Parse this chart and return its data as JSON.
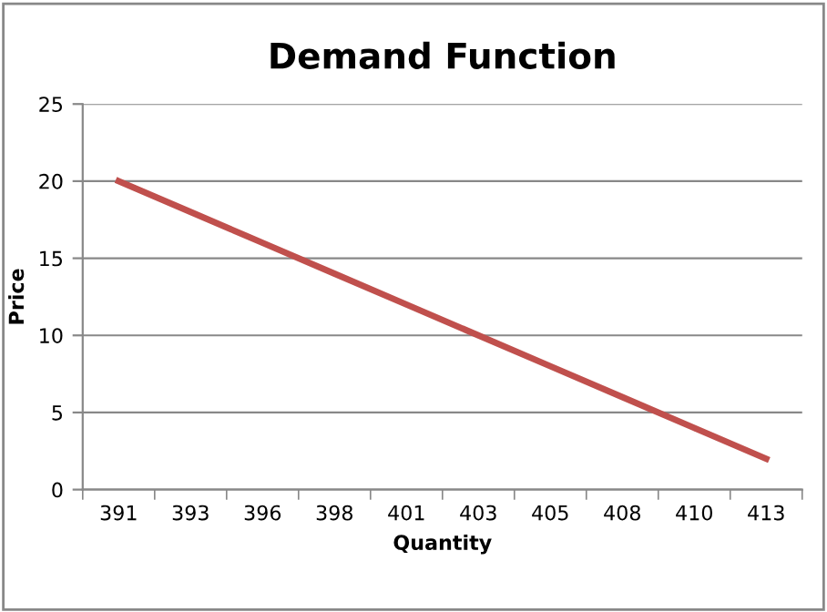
{
  "chart_data": {
    "type": "line",
    "title": "Demand Function",
    "xlabel": "Quantity",
    "ylabel": "Price",
    "categories": [
      "391",
      "393",
      "396",
      "398",
      "401",
      "403",
      "405",
      "408",
      "410",
      "413"
    ],
    "series": [
      {
        "color": "#c0504d",
        "values": [
          20,
          18,
          16,
          14,
          12,
          10,
          8,
          6,
          4,
          2
        ]
      }
    ],
    "ylim": [
      0,
      25
    ],
    "yticks": [
      0,
      5,
      10,
      15,
      20,
      25
    ],
    "grid": "y",
    "marker": "none",
    "line_style": "solid"
  }
}
